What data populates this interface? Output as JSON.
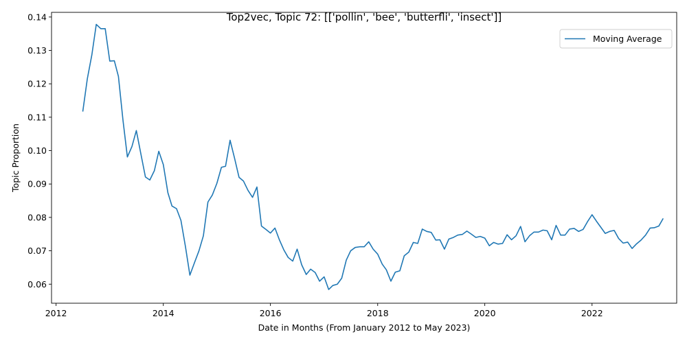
{
  "chart_data": {
    "type": "line",
    "title": "Top2vec, Topic 72: [['pollin', 'bee', 'butterfli', 'insect']]",
    "xlabel": "Date in Months (From January 2012 to May 2023)",
    "ylabel": "Topic Proportion",
    "xlim": [
      "2011-12-01",
      "2023-08-01"
    ],
    "ylim": [
      0.0543,
      0.1414
    ],
    "xticks": [
      {
        "date": "2012-01-01",
        "label": "2012"
      },
      {
        "date": "2014-01-01",
        "label": "2014"
      },
      {
        "date": "2016-01-01",
        "label": "2016"
      },
      {
        "date": "2018-01-01",
        "label": "2018"
      },
      {
        "date": "2020-01-01",
        "label": "2020"
      },
      {
        "date": "2022-01-01",
        "label": "2022"
      }
    ],
    "yticks": [
      {
        "value": 0.06,
        "label": "0.06"
      },
      {
        "value": 0.07,
        "label": "0.07"
      },
      {
        "value": 0.08,
        "label": "0.08"
      },
      {
        "value": 0.09,
        "label": "0.09"
      },
      {
        "value": 0.1,
        "label": "0.10"
      },
      {
        "value": 0.11,
        "label": "0.11"
      },
      {
        "value": 0.12,
        "label": "0.12"
      },
      {
        "value": 0.13,
        "label": "0.13"
      },
      {
        "value": 0.14,
        "label": "0.14"
      }
    ],
    "grid": false,
    "legend_position": "top-right",
    "series": [
      {
        "name": "Moving Average",
        "color": "#1f77b4",
        "x": [
          "2012-07",
          "2012-08",
          "2012-09",
          "2012-10",
          "2012-11",
          "2012-12",
          "2013-01",
          "2013-02",
          "2013-03",
          "2013-04",
          "2013-05",
          "2013-06",
          "2013-07",
          "2013-08",
          "2013-09",
          "2013-10",
          "2013-11",
          "2013-12",
          "2014-01",
          "2014-02",
          "2014-03",
          "2014-04",
          "2014-05",
          "2014-06",
          "2014-07",
          "2014-08",
          "2014-09",
          "2014-10",
          "2014-11",
          "2014-12",
          "2015-01",
          "2015-02",
          "2015-03",
          "2015-04",
          "2015-05",
          "2015-06",
          "2015-07",
          "2015-08",
          "2015-09",
          "2015-10",
          "2015-11",
          "2015-12",
          "2016-01",
          "2016-02",
          "2016-03",
          "2016-04",
          "2016-05",
          "2016-06",
          "2016-07",
          "2016-08",
          "2016-09",
          "2016-10",
          "2016-11",
          "2016-12",
          "2017-01",
          "2017-02",
          "2017-03",
          "2017-04",
          "2017-05",
          "2017-06",
          "2017-07",
          "2017-08",
          "2017-09",
          "2017-10",
          "2017-11",
          "2017-12",
          "2018-01",
          "2018-02",
          "2018-03",
          "2018-04",
          "2018-05",
          "2018-06",
          "2018-07",
          "2018-08",
          "2018-09",
          "2018-10",
          "2018-11",
          "2018-12",
          "2019-01",
          "2019-02",
          "2019-03",
          "2019-04",
          "2019-05",
          "2019-06",
          "2019-07",
          "2019-08",
          "2019-09",
          "2019-10",
          "2019-11",
          "2019-12",
          "2020-01",
          "2020-02",
          "2020-03",
          "2020-04",
          "2020-05",
          "2020-06",
          "2020-07",
          "2020-08",
          "2020-09",
          "2020-10",
          "2020-11",
          "2020-12",
          "2021-01",
          "2021-02",
          "2021-03",
          "2021-04",
          "2021-05",
          "2021-06",
          "2021-07",
          "2021-08",
          "2021-09",
          "2021-10",
          "2021-11",
          "2021-12",
          "2022-01",
          "2022-02",
          "2022-03",
          "2022-04",
          "2022-05",
          "2022-06",
          "2022-07",
          "2022-08",
          "2022-09",
          "2022-10",
          "2022-11",
          "2022-12",
          "2023-01",
          "2023-02",
          "2023-03",
          "2023-04",
          "2023-05"
        ],
        "values": [
          0.1117,
          0.1215,
          0.1287,
          0.1378,
          0.1365,
          0.1365,
          0.1268,
          0.1269,
          0.1222,
          0.1091,
          0.0981,
          0.1012,
          0.106,
          0.099,
          0.0921,
          0.0912,
          0.094,
          0.0998,
          0.0958,
          0.0874,
          0.0834,
          0.0826,
          0.0791,
          0.0712,
          0.0627,
          0.0664,
          0.07,
          0.0745,
          0.0846,
          0.0867,
          0.0902,
          0.095,
          0.0953,
          0.1031,
          0.0978,
          0.092,
          0.0909,
          0.0881,
          0.086,
          0.0891,
          0.0774,
          0.0764,
          0.0753,
          0.0768,
          0.0734,
          0.0703,
          0.068,
          0.0669,
          0.0705,
          0.0658,
          0.0629,
          0.0645,
          0.0635,
          0.0609,
          0.0622,
          0.0584,
          0.0596,
          0.06,
          0.0618,
          0.0672,
          0.07,
          0.071,
          0.0712,
          0.0712,
          0.0727,
          0.0705,
          0.069,
          0.066,
          0.0643,
          0.0609,
          0.0636,
          0.064,
          0.0685,
          0.0696,
          0.0725,
          0.0722,
          0.0765,
          0.0758,
          0.0755,
          0.0732,
          0.0733,
          0.0705,
          0.0735,
          0.074,
          0.0747,
          0.0749,
          0.0759,
          0.075,
          0.074,
          0.0743,
          0.0738,
          0.0715,
          0.0725,
          0.072,
          0.0722,
          0.0748,
          0.0733,
          0.0745,
          0.0773,
          0.0727,
          0.0745,
          0.0756,
          0.0756,
          0.0762,
          0.076,
          0.0733,
          0.0776,
          0.0747,
          0.0747,
          0.0765,
          0.0767,
          0.0758,
          0.0764,
          0.0787,
          0.0808,
          0.0788,
          0.0771,
          0.0752,
          0.0758,
          0.0761,
          0.0737,
          0.0723,
          0.0726,
          0.0707,
          0.0721,
          0.0732,
          0.0747,
          0.0768,
          0.0769,
          0.0774,
          0.0797
        ]
      }
    ]
  }
}
